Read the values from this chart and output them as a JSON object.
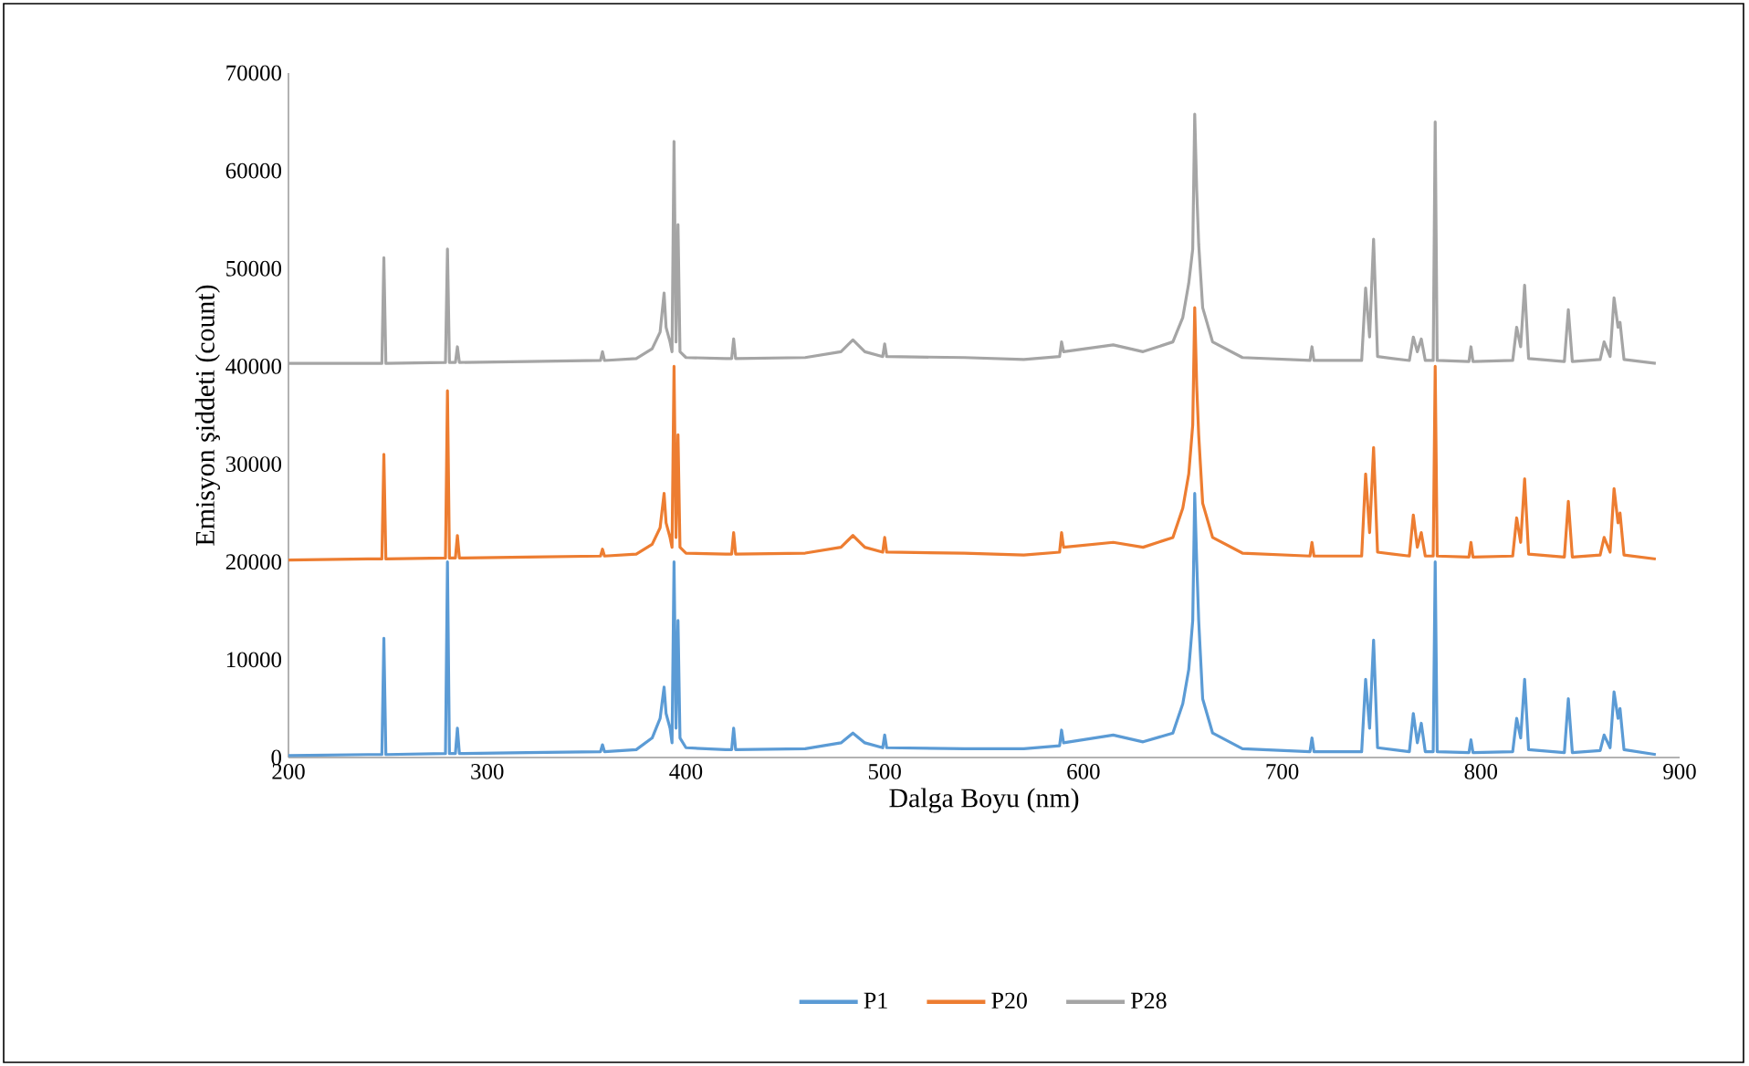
{
  "chart_data": {
    "type": "line",
    "xlabel": "Dalga Boyu (nm)",
    "ylabel": "Emisyon şiddeti (count)",
    "xlim": [
      200,
      900
    ],
    "ylim": [
      0,
      70000
    ],
    "xticks": [
      200,
      300,
      400,
      500,
      600,
      700,
      800,
      900
    ],
    "yticks": [
      0,
      10000,
      20000,
      30000,
      40000,
      50000,
      60000,
      70000
    ],
    "grid": false,
    "legend": "bottom",
    "marker": "none",
    "line_style": "solid",
    "x": [
      200,
      240,
      247,
      248,
      249,
      279,
      280,
      281,
      284,
      285,
      286,
      320,
      357,
      358,
      359,
      375,
      383,
      387,
      389,
      390,
      392,
      393,
      394,
      395,
      396,
      397,
      400,
      420,
      423,
      424,
      425,
      460,
      478,
      484,
      490,
      499,
      500,
      501,
      540,
      570,
      588,
      589,
      590,
      615,
      630,
      645,
      650,
      653,
      655,
      656,
      657,
      658,
      660,
      665,
      680,
      714,
      715,
      716,
      740,
      742,
      744,
      746,
      748,
      764,
      766,
      768,
      770,
      772,
      776,
      777,
      778,
      794,
      795,
      796,
      816,
      818,
      820,
      822,
      824,
      842,
      844,
      846,
      860,
      862,
      865,
      867,
      869,
      870,
      872,
      888
    ],
    "series": [
      {
        "name": "P1",
        "color": "#5b9bd5",
        "values": [
          200,
          300,
          300,
          12200,
          300,
          400,
          20000,
          400,
          400,
          3000,
          400,
          500,
          600,
          1300,
          600,
          800,
          2000,
          4000,
          7200,
          4500,
          3000,
          1500,
          20000,
          3000,
          14000,
          2000,
          1000,
          800,
          800,
          3000,
          800,
          900,
          1500,
          2500,
          1500,
          1000,
          2300,
          1000,
          900,
          900,
          1200,
          2800,
          1500,
          2300,
          1600,
          2500,
          5500,
          9000,
          14000,
          27000,
          20000,
          14000,
          6000,
          2500,
          900,
          600,
          2000,
          600,
          600,
          8000,
          3000,
          12000,
          1000,
          600,
          4500,
          1500,
          3500,
          600,
          600,
          20000,
          600,
          500,
          1800,
          500,
          600,
          4000,
          2000,
          8000,
          800,
          500,
          6000,
          500,
          700,
          2300,
          1000,
          6700,
          4000,
          5000,
          800,
          300
        ]
      },
      {
        "name": "P20",
        "color": "#ed7d31",
        "values": [
          20200,
          20300,
          20300,
          31000,
          20300,
          20400,
          37500,
          20400,
          20400,
          22700,
          20400,
          20500,
          20600,
          21300,
          20600,
          20800,
          21800,
          23500,
          27000,
          24000,
          22500,
          21500,
          40000,
          22500,
          33000,
          21500,
          20900,
          20800,
          20800,
          23000,
          20800,
          20900,
          21500,
          22700,
          21500,
          21000,
          22500,
          21000,
          20900,
          20700,
          21000,
          23000,
          21500,
          22000,
          21500,
          22500,
          25500,
          29000,
          34000,
          46000,
          38000,
          33000,
          26000,
          22500,
          20900,
          20600,
          22000,
          20600,
          20600,
          29000,
          23000,
          31700,
          21000,
          20600,
          24800,
          21500,
          23000,
          20600,
          20600,
          40000,
          20600,
          20500,
          22000,
          20500,
          20600,
          24500,
          22000,
          28500,
          20800,
          20500,
          26200,
          20500,
          20700,
          22500,
          21000,
          27500,
          24000,
          25000,
          20700,
          20300
        ]
      },
      {
        "name": "P28",
        "color": "#a5a5a5",
        "values": [
          40300,
          40300,
          40300,
          51100,
          40300,
          40400,
          52000,
          40400,
          40400,
          42000,
          40400,
          40500,
          40600,
          41500,
          40600,
          40800,
          41800,
          43500,
          47500,
          44000,
          42500,
          41500,
          63000,
          42500,
          54500,
          41500,
          40900,
          40800,
          40800,
          42800,
          40800,
          40900,
          41500,
          42700,
          41500,
          41000,
          42300,
          41000,
          40900,
          40700,
          41000,
          42500,
          41500,
          42200,
          41500,
          42500,
          45000,
          48500,
          52000,
          65800,
          58000,
          52500,
          46000,
          42500,
          40900,
          40600,
          42000,
          40600,
          40600,
          48000,
          43000,
          53000,
          41000,
          40600,
          43000,
          41500,
          42800,
          40600,
          40600,
          65000,
          40600,
          40500,
          42000,
          40500,
          40600,
          44000,
          42000,
          48300,
          40800,
          40500,
          45800,
          40500,
          40700,
          42500,
          41000,
          47000,
          44000,
          44500,
          40700,
          40300
        ]
      }
    ]
  }
}
